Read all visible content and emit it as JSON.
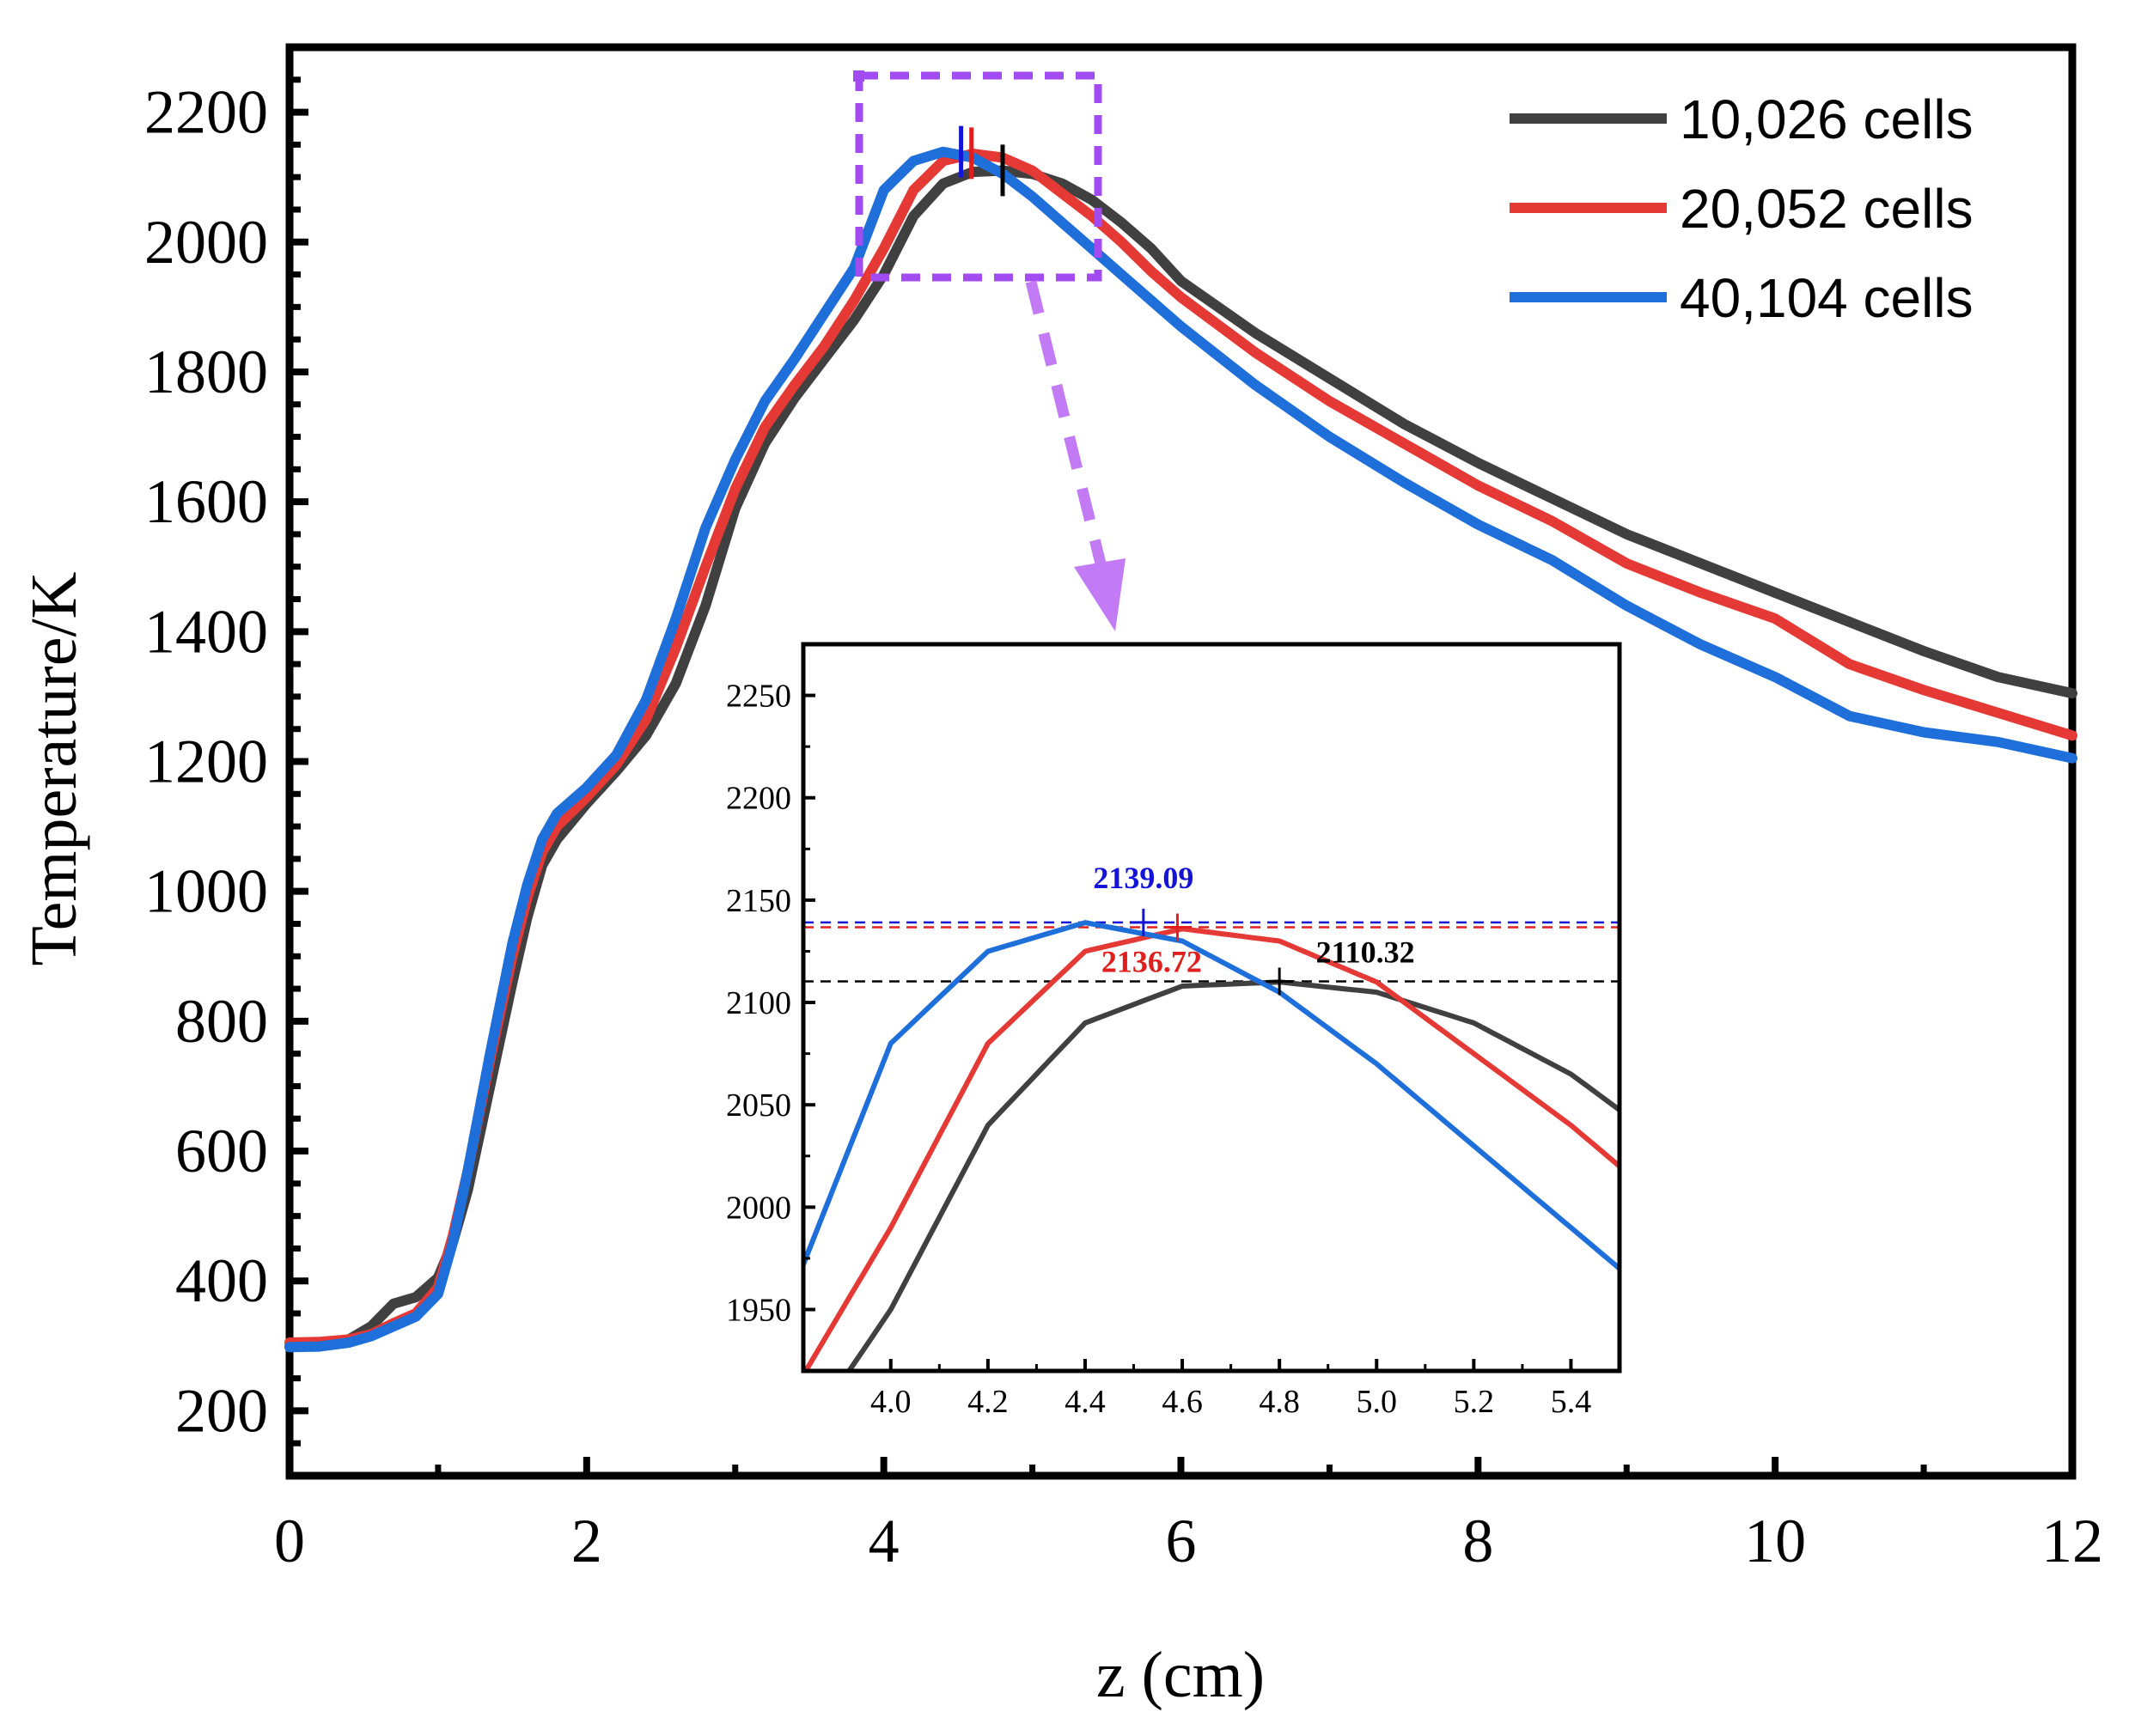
{
  "chart_data": {
    "type": "line",
    "xlabel": "z (cm)",
    "ylabel": "Temperature/K",
    "xlim": [
      0,
      12
    ],
    "ylim": [
      100,
      2300
    ],
    "x_ticks": [
      0,
      2,
      4,
      6,
      8,
      10,
      12
    ],
    "y_ticks": [
      200,
      400,
      600,
      800,
      1000,
      1200,
      1400,
      1600,
      1800,
      2000,
      2200
    ],
    "legend_position": "top-right",
    "series": [
      {
        "name": "10,026 cells",
        "color": "#404040",
        "x": [
          0,
          0.2,
          0.4,
          0.55,
          0.7,
          0.85,
          1.0,
          1.1,
          1.2,
          1.35,
          1.5,
          1.6,
          1.7,
          1.8,
          2.0,
          2.2,
          2.4,
          2.6,
          2.8,
          3.0,
          3.2,
          3.4,
          3.6,
          3.8,
          4.0,
          4.2,
          4.4,
          4.6,
          4.8,
          5.0,
          5.2,
          5.4,
          5.6,
          5.8,
          6.0,
          6.5,
          7.0,
          7.5,
          8.0,
          8.5,
          9.0,
          9.5,
          10.0,
          10.5,
          11.0,
          11.5,
          12.0
        ],
        "y": [
          300,
          302,
          310,
          330,
          365,
          375,
          405,
          460,
          540,
          700,
          860,
          960,
          1040,
          1080,
          1135,
          1185,
          1240,
          1320,
          1440,
          1590,
          1690,
          1760,
          1820,
          1880,
          1950,
          2040,
          2090,
          2108,
          2110,
          2105,
          2090,
          2065,
          2030,
          1990,
          1940,
          1860,
          1790,
          1720,
          1660,
          1605,
          1550,
          1505,
          1460,
          1415,
          1370,
          1330,
          1305
        ]
      },
      {
        "name": "20,052 cells",
        "color": "#e53935",
        "x": [
          0,
          0.2,
          0.4,
          0.55,
          0.7,
          0.85,
          1.0,
          1.1,
          1.2,
          1.35,
          1.5,
          1.6,
          1.7,
          1.8,
          2.0,
          2.2,
          2.4,
          2.6,
          2.8,
          3.0,
          3.2,
          3.4,
          3.6,
          3.8,
          4.0,
          4.2,
          4.4,
          4.6,
          4.8,
          5.0,
          5.2,
          5.4,
          5.6,
          5.8,
          6.0,
          6.5,
          7.0,
          7.5,
          8.0,
          8.5,
          9.0,
          9.5,
          10.0,
          10.5,
          11.0,
          11.5,
          12.0
        ],
        "y": [
          305,
          306,
          310,
          318,
          335,
          350,
          390,
          470,
          570,
          740,
          900,
          990,
          1060,
          1100,
          1145,
          1195,
          1265,
          1375,
          1500,
          1620,
          1715,
          1780,
          1840,
          1910,
          1990,
          2080,
          2125,
          2136,
          2130,
          2110,
          2075,
          2040,
          2000,
          1955,
          1915,
          1830,
          1755,
          1690,
          1625,
          1570,
          1505,
          1460,
          1420,
          1350,
          1310,
          1275,
          1240
        ]
      },
      {
        "name": "40,104 cells",
        "color": "#1e6fd9",
        "x": [
          0,
          0.2,
          0.4,
          0.55,
          0.7,
          0.85,
          1.0,
          1.1,
          1.2,
          1.35,
          1.5,
          1.6,
          1.7,
          1.8,
          2.0,
          2.2,
          2.4,
          2.6,
          2.8,
          3.0,
          3.2,
          3.4,
          3.6,
          3.8,
          4.0,
          4.2,
          4.4,
          4.6,
          4.8,
          5.0,
          5.2,
          5.4,
          5.6,
          5.8,
          6.0,
          6.5,
          7.0,
          7.5,
          8.0,
          8.5,
          9.0,
          9.5,
          10.0,
          10.5,
          11.0,
          11.5,
          12.0
        ],
        "y": [
          298,
          299,
          305,
          315,
          330,
          345,
          380,
          460,
          570,
          750,
          920,
          1010,
          1080,
          1120,
          1160,
          1210,
          1295,
          1420,
          1560,
          1665,
          1755,
          1820,
          1890,
          1960,
          2080,
          2125,
          2139,
          2130,
          2105,
          2070,
          2030,
          1990,
          1950,
          1910,
          1870,
          1780,
          1700,
          1630,
          1565,
          1510,
          1440,
          1380,
          1330,
          1270,
          1245,
          1230,
          1205
        ]
      }
    ],
    "inset": {
      "xlim": [
        3.82,
        5.5
      ],
      "ylim": [
        1920,
        2275
      ],
      "x_ticks": [
        "4.0",
        "4.2",
        "4.4",
        "4.6",
        "4.8",
        "5.0",
        "5.2",
        "5.4"
      ],
      "y_ticks": [
        "1950",
        "2000",
        "2050",
        "2100",
        "2150",
        "2200",
        "2250"
      ],
      "peaks": [
        {
          "label": "2139.09",
          "x": 4.52,
          "y": 2139.09,
          "color": "#1414d8"
        },
        {
          "label": "2136.72",
          "x": 4.59,
          "y": 2136.72,
          "color": "#e01e1e"
        },
        {
          "label": "2110.32",
          "x": 4.8,
          "y": 2110.32,
          "color": "#000000"
        }
      ]
    }
  }
}
